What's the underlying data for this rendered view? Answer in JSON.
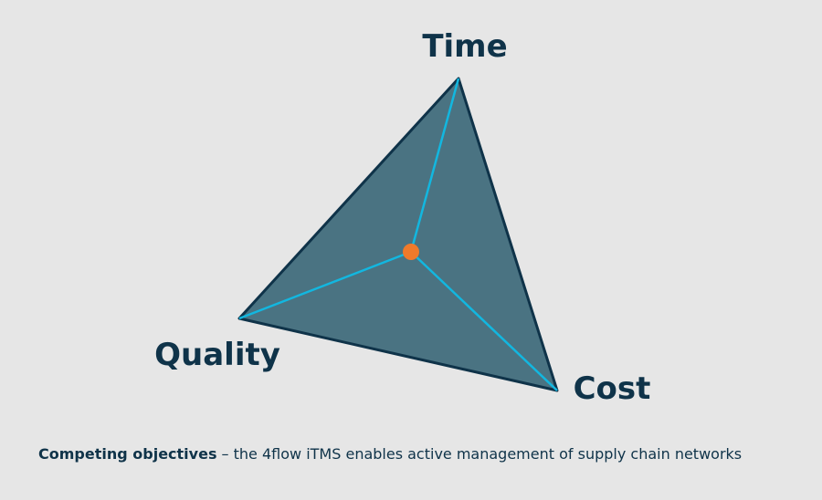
{
  "nodes": [
    {
      "label": "Time"
    },
    {
      "label": "Quality"
    },
    {
      "label": "Cost"
    }
  ],
  "caption": {
    "bold": "Competing objectives",
    "text": " – the 4flow iTMS enables active management of supply chain networks"
  }
}
